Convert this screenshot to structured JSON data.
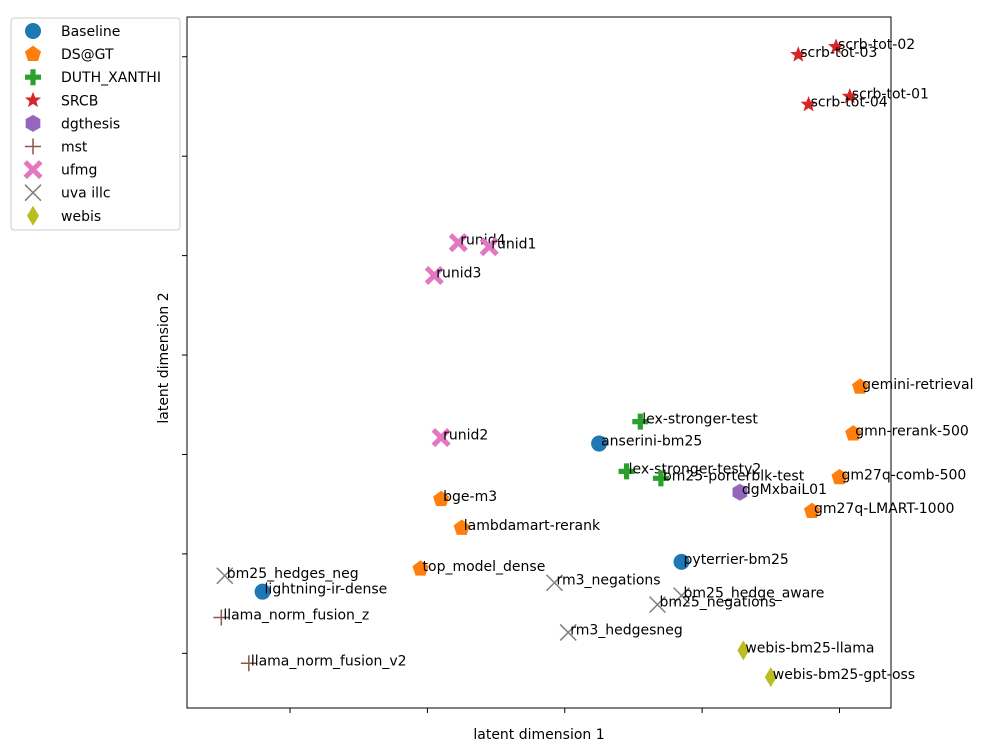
{
  "chart_data": {
    "type": "scatter",
    "title": "",
    "xlabel": "latent dimension 1",
    "ylabel": "latent dimension 2",
    "xlim": [
      -0.5,
      9.75
    ],
    "ylim": [
      -0.55,
      6.4
    ],
    "xticks": [
      1,
      3,
      5,
      7,
      9
    ],
    "yticks": [
      0,
      1,
      2,
      3,
      4,
      5,
      6
    ],
    "show_tick_labels": false,
    "grid": false,
    "legend_position": "outside-upper-left",
    "series": [
      {
        "name": "Baseline",
        "marker": "circle",
        "color": "#1f77b4",
        "points": [
          {
            "label": "anserini-bm25",
            "x": 5.5,
            "y": 2.11
          },
          {
            "label": "pyterrier-bm25",
            "x": 6.7,
            "y": 0.92
          },
          {
            "label": "lightning-ir-dense",
            "x": 0.6,
            "y": 0.62
          }
        ]
      },
      {
        "name": "DS@GT",
        "marker": "pentagon",
        "color": "#ff7f0e",
        "points": [
          {
            "label": "gemini-retrieval",
            "x": 9.3,
            "y": 2.68
          },
          {
            "label": "gmn-rerank-500",
            "x": 9.2,
            "y": 2.21
          },
          {
            "label": "gm27q-comb-500",
            "x": 9.0,
            "y": 1.77
          },
          {
            "label": "gm27q-LMART-1000",
            "x": 8.6,
            "y": 1.43
          },
          {
            "label": "bge-m3",
            "x": 3.2,
            "y": 1.55
          },
          {
            "label": "lambdamart-rerank",
            "x": 3.5,
            "y": 1.26
          },
          {
            "label": "top_model_dense",
            "x": 2.9,
            "y": 0.85
          }
        ]
      },
      {
        "name": "DUTH_XANTHI",
        "marker": "plus",
        "color": "#2ca02c",
        "points": [
          {
            "label": "lex-stronger-test",
            "x": 6.1,
            "y": 2.33
          },
          {
            "label": "lex-stronger-testy2",
            "x": 5.9,
            "y": 1.83
          },
          {
            "label": "bm25-porterblk-test",
            "x": 6.4,
            "y": 1.76
          }
        ]
      },
      {
        "name": "SRCB",
        "marker": "star",
        "color": "#d62728",
        "points": [
          {
            "label": "scrb-tot-02",
            "x": 8.95,
            "y": 6.1
          },
          {
            "label": "scrb-tot-03",
            "x": 8.4,
            "y": 6.02
          },
          {
            "label": "scrb-tot-01",
            "x": 9.15,
            "y": 5.6
          },
          {
            "label": "scrb-tot-04",
            "x": 8.55,
            "y": 5.52
          }
        ]
      },
      {
        "name": "dgthesis",
        "marker": "hexagon",
        "color": "#9467bd",
        "points": [
          {
            "label": "dgMxbaiL01",
            "x": 7.55,
            "y": 1.62
          }
        ]
      },
      {
        "name": "mst",
        "marker": "thin-plus",
        "color": "#8c564b",
        "points": [
          {
            "label": "llama_norm_fusion_z",
            "x": 0.0,
            "y": 0.36
          },
          {
            "label": "llama_norm_fusion_v2",
            "x": 0.4,
            "y": -0.1
          }
        ]
      },
      {
        "name": "ufmg",
        "marker": "x-filled",
        "color": "#e377c2",
        "points": [
          {
            "label": "runid4",
            "x": 3.45,
            "y": 4.13
          },
          {
            "label": "runid1",
            "x": 3.9,
            "y": 4.09
          },
          {
            "label": "runid3",
            "x": 3.1,
            "y": 3.8
          },
          {
            "label": "runid2",
            "x": 3.2,
            "y": 2.17
          }
        ]
      },
      {
        "name": "uva illc",
        "marker": "x-thin",
        "color": "#7f7f7f",
        "points": [
          {
            "label": "bm25_hedges_neg",
            "x": 0.05,
            "y": 0.78
          },
          {
            "label": "rm3_negations",
            "x": 4.85,
            "y": 0.71
          },
          {
            "label": "bm25_hedge_aware",
            "x": 6.7,
            "y": 0.58
          },
          {
            "label": "bm25_negations",
            "x": 6.35,
            "y": 0.49
          },
          {
            "label": "rm3_hedgesneg",
            "x": 5.05,
            "y": 0.21
          }
        ]
      },
      {
        "name": "webis",
        "marker": "diamond",
        "color": "#bcbd22",
        "points": [
          {
            "label": "webis-bm25-llama",
            "x": 7.6,
            "y": 0.03
          },
          {
            "label": "webis-bm25-gpt-oss",
            "x": 8.0,
            "y": -0.24
          }
        ]
      }
    ]
  }
}
